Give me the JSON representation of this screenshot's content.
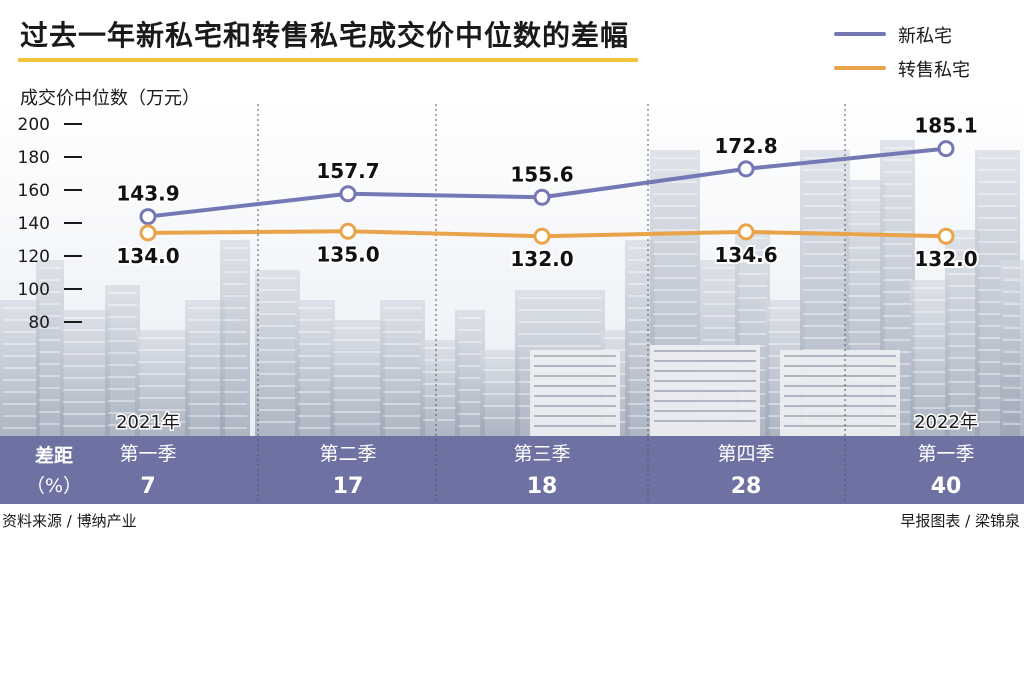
{
  "title": "过去一年新私宅和转售私宅成交价中位数的差幅",
  "colors": {
    "new": "#7478b4",
    "resale": "#e9a44a",
    "band": "#6d72a3",
    "accent": "#f2c43c"
  },
  "chart_data": {
    "type": "line",
    "ylabel": "成交价中位数（万元）",
    "ylim": [
      80,
      200
    ],
    "yticks": [
      "200",
      "180",
      "160",
      "140",
      "120",
      "100",
      "80"
    ],
    "legend_position": "top-right",
    "series": [
      {
        "name": "新私宅",
        "values": [
          143.9,
          157.7,
          155.6,
          172.8,
          185.1
        ],
        "labels": [
          "143.9",
          "157.7",
          "155.6",
          "172.8",
          "185.1"
        ]
      },
      {
        "name": "转售私宅",
        "values": [
          134.0,
          135.0,
          132.0,
          134.6,
          132.0
        ],
        "labels": [
          "134.0",
          "135.0",
          "132.0",
          "134.6",
          "132.0"
        ]
      }
    ],
    "categories": [
      "第一季",
      "第二季",
      "第三季",
      "第四季",
      "第一季"
    ],
    "years": [
      "2021年",
      "",
      "",
      "",
      "2022年"
    ],
    "diff_label": [
      "差距",
      "（%）"
    ],
    "diff_values": [
      "7",
      "17",
      "18",
      "28",
      "40"
    ]
  },
  "footer": {
    "source": "资料来源 / 博纳产业",
    "credit": "早报图表 / 梁锦泉"
  }
}
